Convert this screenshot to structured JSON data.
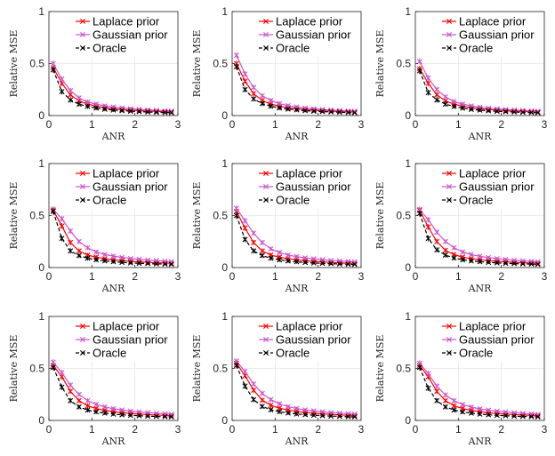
{
  "chart_data": [
    {
      "type": "line",
      "xlabel": "ANR",
      "ylabel": "Relative MSE",
      "xlim": [
        0,
        3
      ],
      "ylim": [
        0,
        1
      ],
      "xticks": [
        0,
        1,
        2,
        3
      ],
      "yticks": [
        0,
        0.5,
        1
      ],
      "ytick_labels": [
        "0",
        "0.5",
        "1"
      ],
      "grid": true,
      "legend_position": "top-right",
      "x": [
        0.1,
        0.3,
        0.5,
        0.7,
        0.9,
        1.1,
        1.3,
        1.5,
        1.7,
        1.9,
        2.1,
        2.3,
        2.5,
        2.7,
        2.85
      ],
      "series": [
        {
          "name": "Laplace prior",
          "color": "#ff0000",
          "marker": "x",
          "line": "solid",
          "values": [
            0.46,
            0.31,
            0.2,
            0.14,
            0.11,
            0.09,
            0.075,
            0.065,
            0.058,
            0.052,
            0.047,
            0.043,
            0.04,
            0.037,
            0.035
          ]
        },
        {
          "name": "Gaussian prior",
          "color": "#cc55cc",
          "marker": "x",
          "line": "solid",
          "values": [
            0.5,
            0.35,
            0.24,
            0.17,
            0.13,
            0.11,
            0.093,
            0.082,
            0.073,
            0.066,
            0.06,
            0.055,
            0.05,
            0.046,
            0.043
          ]
        },
        {
          "name": "Oracle",
          "color": "#000000",
          "marker": "x",
          "line": "dashed",
          "values": [
            0.44,
            0.23,
            0.15,
            0.11,
            0.088,
            0.072,
            0.061,
            0.053,
            0.047,
            0.042,
            0.038,
            0.034,
            0.031,
            0.029,
            0.027
          ]
        }
      ]
    },
    {
      "type": "line",
      "xlabel": "ANR",
      "ylabel": "Relative MSE",
      "xlim": [
        0,
        3
      ],
      "ylim": [
        0,
        1
      ],
      "xticks": [
        0,
        1,
        2,
        3
      ],
      "yticks": [
        0,
        0.5,
        1
      ],
      "ytick_labels": [
        "0",
        "0.5",
        "1"
      ],
      "grid": true,
      "legend_position": "top-right",
      "x": [
        0.1,
        0.3,
        0.5,
        0.7,
        0.9,
        1.1,
        1.3,
        1.5,
        1.7,
        1.9,
        2.1,
        2.3,
        2.5,
        2.7,
        2.85
      ],
      "series": [
        {
          "name": "Laplace prior",
          "color": "#ff0000",
          "marker": "x",
          "line": "solid",
          "values": [
            0.5,
            0.33,
            0.21,
            0.145,
            0.11,
            0.09,
            0.075,
            0.065,
            0.057,
            0.051,
            0.046,
            0.042,
            0.039,
            0.036,
            0.034
          ]
        },
        {
          "name": "Gaussian prior",
          "color": "#cc55cc",
          "marker": "x",
          "line": "solid",
          "values": [
            0.58,
            0.4,
            0.27,
            0.19,
            0.145,
            0.115,
            0.095,
            0.082,
            0.072,
            0.064,
            0.058,
            0.053,
            0.049,
            0.045,
            0.042
          ]
        },
        {
          "name": "Oracle",
          "color": "#000000",
          "marker": "x",
          "line": "dashed",
          "values": [
            0.47,
            0.25,
            0.16,
            0.115,
            0.09,
            0.073,
            0.062,
            0.054,
            0.047,
            0.042,
            0.038,
            0.035,
            0.032,
            0.029,
            0.027
          ]
        }
      ]
    },
    {
      "type": "line",
      "xlabel": "ANR",
      "ylabel": "Relative MSE",
      "xlim": [
        0,
        3
      ],
      "ylim": [
        0,
        1
      ],
      "xticks": [
        0,
        1,
        2,
        3
      ],
      "yticks": [
        0,
        0.5,
        1
      ],
      "ytick_labels": [
        "0",
        "0.5",
        "1"
      ],
      "grid": true,
      "legend_position": "top-right",
      "x": [
        0.1,
        0.3,
        0.5,
        0.7,
        0.9,
        1.1,
        1.3,
        1.5,
        1.7,
        1.9,
        2.1,
        2.3,
        2.5,
        2.7,
        2.85
      ],
      "series": [
        {
          "name": "Laplace prior",
          "color": "#ff0000",
          "marker": "x",
          "line": "solid",
          "values": [
            0.45,
            0.31,
            0.2,
            0.14,
            0.11,
            0.09,
            0.075,
            0.065,
            0.058,
            0.052,
            0.047,
            0.043,
            0.04,
            0.037,
            0.035
          ]
        },
        {
          "name": "Gaussian prior",
          "color": "#cc55cc",
          "marker": "x",
          "line": "solid",
          "values": [
            0.52,
            0.36,
            0.25,
            0.18,
            0.135,
            0.11,
            0.092,
            0.08,
            0.071,
            0.064,
            0.058,
            0.053,
            0.049,
            0.045,
            0.042
          ]
        },
        {
          "name": "Oracle",
          "color": "#000000",
          "marker": "x",
          "line": "dashed",
          "values": [
            0.43,
            0.22,
            0.15,
            0.11,
            0.087,
            0.071,
            0.06,
            0.052,
            0.046,
            0.041,
            0.037,
            0.034,
            0.031,
            0.029,
            0.027
          ]
        }
      ]
    },
    {
      "type": "line",
      "xlabel": "ANR",
      "ylabel": "Relative MSE",
      "xlim": [
        0,
        3
      ],
      "ylim": [
        0,
        1
      ],
      "xticks": [
        0,
        1,
        2,
        3
      ],
      "yticks": [
        0,
        0.5,
        1
      ],
      "ytick_labels": [
        "0",
        "0.5",
        "1"
      ],
      "grid": true,
      "legend_position": "top-right",
      "x": [
        0.1,
        0.3,
        0.5,
        0.7,
        0.9,
        1.1,
        1.3,
        1.5,
        1.7,
        1.9,
        2.1,
        2.3,
        2.5,
        2.7,
        2.85
      ],
      "series": [
        {
          "name": "Laplace prior",
          "color": "#ff0000",
          "marker": "x",
          "line": "solid",
          "values": [
            0.55,
            0.4,
            0.24,
            0.16,
            0.12,
            0.1,
            0.085,
            0.075,
            0.067,
            0.06,
            0.055,
            0.05,
            0.046,
            0.043,
            0.04
          ]
        },
        {
          "name": "Gaussian prior",
          "color": "#cc55cc",
          "marker": "x",
          "line": "solid",
          "values": [
            0.56,
            0.47,
            0.35,
            0.25,
            0.19,
            0.15,
            0.125,
            0.11,
            0.097,
            0.087,
            0.079,
            0.072,
            0.066,
            0.061,
            0.057
          ]
        },
        {
          "name": "Oracle",
          "color": "#000000",
          "marker": "x",
          "line": "dashed",
          "values": [
            0.54,
            0.28,
            0.16,
            0.115,
            0.09,
            0.075,
            0.064,
            0.056,
            0.05,
            0.045,
            0.041,
            0.038,
            0.035,
            0.033,
            0.031
          ]
        }
      ]
    },
    {
      "type": "line",
      "xlabel": "ANR",
      "ylabel": "Relative MSE",
      "xlim": [
        0,
        3
      ],
      "ylim": [
        0,
        1
      ],
      "xticks": [
        0,
        1,
        2,
        3
      ],
      "yticks": [
        0,
        0.5,
        1
      ],
      "ytick_labels": [
        "0",
        "0.5",
        "1"
      ],
      "grid": true,
      "legend_position": "top-right",
      "x": [
        0.1,
        0.3,
        0.5,
        0.7,
        0.9,
        1.1,
        1.3,
        1.5,
        1.7,
        1.9,
        2.1,
        2.3,
        2.5,
        2.7,
        2.85
      ],
      "series": [
        {
          "name": "Laplace prior",
          "color": "#ff0000",
          "marker": "x",
          "line": "solid",
          "values": [
            0.54,
            0.38,
            0.24,
            0.16,
            0.12,
            0.1,
            0.085,
            0.074,
            0.066,
            0.059,
            0.054,
            0.049,
            0.045,
            0.042,
            0.039
          ]
        },
        {
          "name": "Gaussian prior",
          "color": "#cc55cc",
          "marker": "x",
          "line": "solid",
          "values": [
            0.57,
            0.45,
            0.33,
            0.24,
            0.18,
            0.145,
            0.12,
            0.105,
            0.093,
            0.084,
            0.076,
            0.069,
            0.064,
            0.059,
            0.055
          ]
        },
        {
          "name": "Oracle",
          "color": "#000000",
          "marker": "x",
          "line": "dashed",
          "values": [
            0.5,
            0.27,
            0.16,
            0.115,
            0.09,
            0.074,
            0.063,
            0.055,
            0.049,
            0.044,
            0.04,
            0.037,
            0.034,
            0.032,
            0.03
          ]
        }
      ]
    },
    {
      "type": "line",
      "xlabel": "ANR",
      "ylabel": "Relative MSE",
      "xlim": [
        0,
        3
      ],
      "ylim": [
        0,
        1
      ],
      "xticks": [
        0,
        1,
        2,
        3
      ],
      "yticks": [
        0,
        0.5,
        1
      ],
      "ytick_labels": [
        "0",
        "0.5",
        "1"
      ],
      "grid": true,
      "legend_position": "top-right",
      "x": [
        0.1,
        0.3,
        0.5,
        0.7,
        0.9,
        1.1,
        1.3,
        1.5,
        1.7,
        1.9,
        2.1,
        2.3,
        2.5,
        2.7,
        2.85
      ],
      "series": [
        {
          "name": "Laplace prior",
          "color": "#ff0000",
          "marker": "x",
          "line": "solid",
          "values": [
            0.55,
            0.39,
            0.25,
            0.165,
            0.125,
            0.1,
            0.086,
            0.075,
            0.067,
            0.06,
            0.055,
            0.05,
            0.046,
            0.043,
            0.04
          ]
        },
        {
          "name": "Gaussian prior",
          "color": "#cc55cc",
          "marker": "x",
          "line": "solid",
          "values": [
            0.56,
            0.46,
            0.34,
            0.25,
            0.19,
            0.15,
            0.125,
            0.108,
            0.096,
            0.086,
            0.078,
            0.071,
            0.065,
            0.06,
            0.056
          ]
        },
        {
          "name": "Oracle",
          "color": "#000000",
          "marker": "x",
          "line": "dashed",
          "values": [
            0.52,
            0.28,
            0.17,
            0.12,
            0.092,
            0.075,
            0.064,
            0.056,
            0.05,
            0.045,
            0.041,
            0.038,
            0.035,
            0.033,
            0.031
          ]
        }
      ]
    },
    {
      "type": "line",
      "xlabel": "ANR",
      "ylabel": "Relative MSE",
      "xlim": [
        0,
        3
      ],
      "ylim": [
        0,
        1
      ],
      "xticks": [
        0,
        1,
        2,
        3
      ],
      "yticks": [
        0,
        0.5,
        1
      ],
      "ytick_labels": [
        "0",
        "0.5",
        "1"
      ],
      "grid": true,
      "legend_position": "top-right",
      "x": [
        0.1,
        0.3,
        0.5,
        0.7,
        0.9,
        1.1,
        1.3,
        1.5,
        1.7,
        1.9,
        2.1,
        2.3,
        2.5,
        2.7,
        2.85
      ],
      "series": [
        {
          "name": "Laplace prior",
          "color": "#ff0000",
          "marker": "x",
          "line": "solid",
          "values": [
            0.53,
            0.42,
            0.28,
            0.19,
            0.14,
            0.115,
            0.097,
            0.085,
            0.075,
            0.067,
            0.061,
            0.056,
            0.052,
            0.048,
            0.045
          ]
        },
        {
          "name": "Gaussian prior",
          "color": "#cc55cc",
          "marker": "x",
          "line": "solid",
          "values": [
            0.56,
            0.46,
            0.34,
            0.25,
            0.19,
            0.155,
            0.13,
            0.113,
            0.1,
            0.09,
            0.082,
            0.075,
            0.069,
            0.064,
            0.06
          ]
        },
        {
          "name": "Oracle",
          "color": "#000000",
          "marker": "x",
          "line": "dashed",
          "values": [
            0.51,
            0.32,
            0.19,
            0.13,
            0.1,
            0.082,
            0.07,
            0.061,
            0.054,
            0.049,
            0.045,
            0.041,
            0.038,
            0.036,
            0.034
          ]
        }
      ]
    },
    {
      "type": "line",
      "xlabel": "ANR",
      "ylabel": "Relative MSE",
      "xlim": [
        0,
        3
      ],
      "ylim": [
        0,
        1
      ],
      "xticks": [
        0,
        1,
        2,
        3
      ],
      "yticks": [
        0,
        0.5,
        1
      ],
      "ytick_labels": [
        "0",
        "0.5",
        "1"
      ],
      "grid": true,
      "legend_position": "top-right",
      "x": [
        0.1,
        0.3,
        0.5,
        0.7,
        0.9,
        1.1,
        1.3,
        1.5,
        1.7,
        1.9,
        2.1,
        2.3,
        2.5,
        2.7,
        2.85
      ],
      "series": [
        {
          "name": "Laplace prior",
          "color": "#ff0000",
          "marker": "x",
          "line": "solid",
          "values": [
            0.55,
            0.43,
            0.29,
            0.195,
            0.145,
            0.118,
            0.1,
            0.087,
            0.077,
            0.069,
            0.063,
            0.058,
            0.053,
            0.049,
            0.046
          ]
        },
        {
          "name": "Gaussian prior",
          "color": "#cc55cc",
          "marker": "x",
          "line": "solid",
          "values": [
            0.57,
            0.47,
            0.35,
            0.26,
            0.2,
            0.16,
            0.133,
            0.115,
            0.102,
            0.092,
            0.083,
            0.076,
            0.07,
            0.065,
            0.061
          ]
        },
        {
          "name": "Oracle",
          "color": "#000000",
          "marker": "x",
          "line": "dashed",
          "values": [
            0.53,
            0.33,
            0.2,
            0.135,
            0.103,
            0.084,
            0.071,
            0.062,
            0.055,
            0.05,
            0.045,
            0.042,
            0.039,
            0.036,
            0.034
          ]
        }
      ]
    },
    {
      "type": "line",
      "xlabel": "ANR",
      "ylabel": "Relative MSE",
      "xlim": [
        0,
        3
      ],
      "ylim": [
        0,
        1
      ],
      "xticks": [
        0,
        1,
        2,
        3
      ],
      "yticks": [
        0,
        0.5,
        1
      ],
      "ytick_labels": [
        "0",
        "0.5",
        "1"
      ],
      "grid": true,
      "legend_position": "top-right",
      "x": [
        0.1,
        0.3,
        0.5,
        0.7,
        0.9,
        1.1,
        1.3,
        1.5,
        1.7,
        1.9,
        2.1,
        2.3,
        2.5,
        2.7,
        2.85
      ],
      "series": [
        {
          "name": "Laplace prior",
          "color": "#ff0000",
          "marker": "x",
          "line": "solid",
          "values": [
            0.53,
            0.42,
            0.28,
            0.19,
            0.14,
            0.115,
            0.097,
            0.085,
            0.075,
            0.067,
            0.061,
            0.056,
            0.052,
            0.048,
            0.045
          ]
        },
        {
          "name": "Gaussian prior",
          "color": "#cc55cc",
          "marker": "x",
          "line": "solid",
          "values": [
            0.55,
            0.45,
            0.33,
            0.245,
            0.19,
            0.153,
            0.128,
            0.111,
            0.099,
            0.089,
            0.081,
            0.074,
            0.068,
            0.063,
            0.059
          ]
        },
        {
          "name": "Oracle",
          "color": "#000000",
          "marker": "x",
          "line": "dashed",
          "values": [
            0.51,
            0.31,
            0.19,
            0.13,
            0.1,
            0.082,
            0.07,
            0.061,
            0.054,
            0.049,
            0.045,
            0.041,
            0.038,
            0.036,
            0.034
          ]
        }
      ]
    }
  ]
}
